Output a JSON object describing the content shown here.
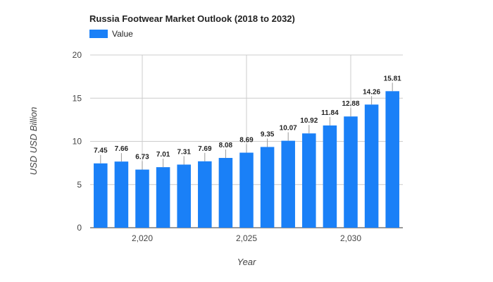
{
  "chart_data": {
    "type": "bar",
    "title": "Russia Footwear Market Outlook (2018 to 2032)",
    "xlabel": "Year",
    "ylabel": "USD USD Billion",
    "x": [
      2018,
      2019,
      2020,
      2021,
      2022,
      2023,
      2024,
      2025,
      2026,
      2027,
      2028,
      2029,
      2030,
      2031,
      2032
    ],
    "series": [
      {
        "name": "Value",
        "values": [
          7.45,
          7.66,
          6.73,
          7.01,
          7.31,
          7.69,
          8.08,
          8.69,
          9.35,
          10.07,
          10.92,
          11.84,
          12.88,
          14.26,
          15.81
        ]
      }
    ],
    "data_labels": [
      "7.45",
      "7.66",
      "6.73",
      "7.01",
      "7.31",
      "7.69",
      "8.08",
      "8.69",
      "9.35",
      "10.07",
      "10.92",
      "11.84",
      "12.88",
      "14.26",
      "15.81"
    ],
    "ylim": [
      0,
      20
    ],
    "yticks": [
      0,
      5,
      10,
      15,
      20
    ],
    "ytick_labels": [
      "0",
      "5",
      "10",
      "15",
      "20"
    ],
    "xticks": [
      2020,
      2025,
      2030
    ],
    "xtick_labels": [
      "2,020",
      "2,025",
      "2,030"
    ],
    "grid": true,
    "legend_position": "top-left",
    "colors": {
      "bar": "#1a80f7",
      "grid": "#cccccc",
      "text": "#222222",
      "axis_text": "#444444"
    }
  }
}
